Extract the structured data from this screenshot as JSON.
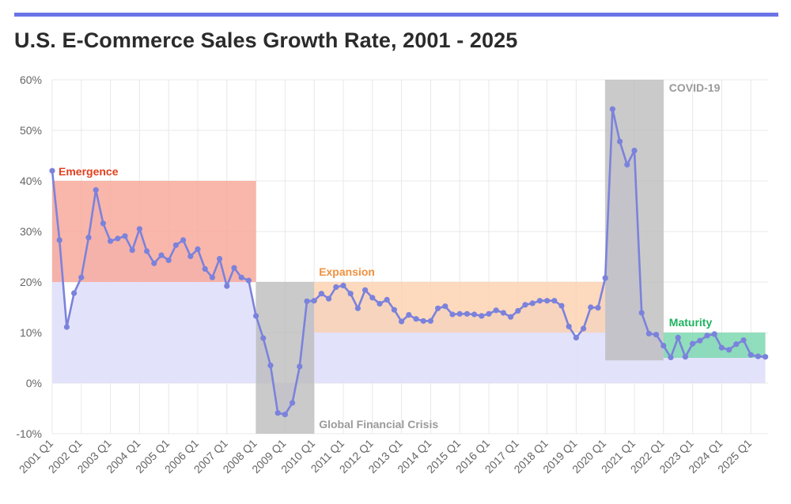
{
  "chart_data": {
    "type": "line",
    "title": "U.S. E-Commerce Sales Growth Rate, 2001 - 2025",
    "ylim": [
      -10,
      60
    ],
    "yticks": [
      -10,
      0,
      10,
      20,
      30,
      40,
      50,
      60
    ],
    "ytick_labels": [
      "-10%",
      "0%",
      "10%",
      "20%",
      "30%",
      "40%",
      "50%",
      "60%"
    ],
    "xtick_labels": [
      "2001 Q1",
      "2002 Q1",
      "2003 Q1",
      "2004 Q1",
      "2005 Q1",
      "2006 Q1",
      "2007 Q1",
      "2008 Q1",
      "2009 Q1",
      "2010 Q1",
      "2011 Q1",
      "2012 Q1",
      "2013 Q1",
      "2014 Q1",
      "2015 Q1",
      "2016 Q1",
      "2017 Q1",
      "2018 Q1",
      "2019 Q1",
      "2020 Q1",
      "2021 Q1",
      "2022 Q1",
      "2023 Q1",
      "2024 Q1",
      "2025 Q1"
    ],
    "x_start_year": 2001,
    "grid": true,
    "colors": {
      "line": "#7b82dc",
      "underfill": "#e0e2fa",
      "emergence": "#f8a99b",
      "expansion": "#fdd0ae",
      "crisis": "#b8b8b8",
      "maturity": "#7ed8b0",
      "emergence_text": "#e2401e",
      "expansion_text": "#f0913f",
      "crisis_text": "#9a9a9a",
      "maturity_text": "#1db35f"
    },
    "regions": [
      {
        "label": "Emergence",
        "start": "2001 Q1",
        "end": "2008 Q1",
        "x0": 2001.0,
        "x1": 2008.0,
        "y0": 20,
        "y1": 40,
        "kind": "emergence"
      },
      {
        "label": "Global Financial Crisis",
        "start": "2008 Q1",
        "end": "2010 Q1",
        "x0": 2008.0,
        "x1": 2010.0,
        "y0": -10,
        "y1": 20,
        "kind": "crisis"
      },
      {
        "label": "Expansion",
        "start": "2010 Q1",
        "end": "2020 Q1",
        "x0": 2010.0,
        "x1": 2020.0,
        "y0": 10,
        "y1": 20,
        "kind": "expansion"
      },
      {
        "label": "COVID-19",
        "start": "2020 Q1",
        "end": "2022 Q1",
        "x0": 2020.0,
        "x1": 2022.0,
        "y0": 4.5,
        "y1": 60,
        "kind": "crisis"
      },
      {
        "label": "Maturity",
        "start": "2022 Q1",
        "end": "2025 Q3",
        "x0": 2022.0,
        "x1": 2025.5,
        "y0": 5,
        "y1": 10,
        "kind": "maturity"
      }
    ],
    "series": [
      {
        "name": "E-Commerce Sales Growth Rate (%)",
        "values": [
          42.0,
          28.3,
          11.1,
          17.8,
          20.9,
          28.8,
          38.2,
          31.6,
          28.1,
          28.6,
          29.1,
          26.3,
          30.5,
          26.1,
          23.7,
          25.3,
          24.3,
          27.3,
          28.3,
          25.1,
          26.5,
          22.6,
          20.9,
          24.6,
          19.2,
          22.8,
          20.9,
          20.3,
          13.3,
          8.9,
          3.5,
          -5.9,
          -6.2,
          -3.9,
          3.3,
          16.2,
          16.3,
          17.7,
          16.7,
          19.0,
          19.3,
          17.7,
          14.8,
          18.4,
          16.9,
          15.7,
          16.5,
          14.5,
          12.2,
          13.5,
          12.7,
          12.3,
          12.3,
          14.8,
          15.2,
          13.6,
          13.7,
          13.7,
          13.6,
          13.3,
          13.7,
          14.4,
          13.9,
          13.1,
          14.3,
          15.5,
          15.8,
          16.3,
          16.3,
          16.3,
          15.3,
          11.2,
          9.0,
          10.8,
          15.0,
          14.9,
          20.8,
          54.2,
          47.8,
          43.2,
          46.0,
          13.9,
          9.8,
          9.6,
          7.4,
          5.1,
          9.0,
          5.2,
          7.8,
          8.4,
          9.4,
          9.7,
          7.0,
          6.6,
          7.7,
          8.5,
          5.6,
          5.3,
          5.2
        ]
      }
    ]
  }
}
